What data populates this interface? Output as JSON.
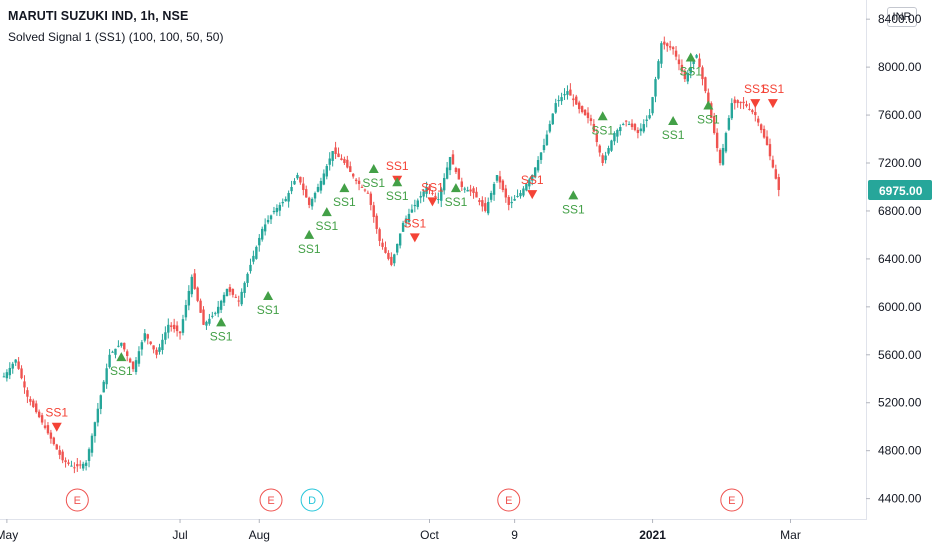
{
  "header": {
    "title": "MARUTI SUZUKI IND, 1h, NSE",
    "indicator": "Solved Signal 1 (SS1) (100, 100, 50, 50)",
    "currency": "INR"
  },
  "colors": {
    "up": "#26a69a",
    "down": "#ef5350",
    "buy_signal": "#43a047",
    "sell_signal": "#f44336",
    "earnings": "#ef5350",
    "dividend": "#26c6da",
    "price_label_bg": "#26a69a"
  },
  "chart_data": {
    "type": "candlestick",
    "symbol": "MARUTI SUZUKI IND",
    "interval": "1h",
    "exchange": "NSE",
    "y_ticks": [
      4400,
      4800,
      5200,
      5600,
      6000,
      6400,
      6800,
      7200,
      7600,
      8000,
      8400
    ],
    "y_tick_labels": [
      "4400.00",
      "4800.00",
      "5200.00",
      "5600.00",
      "6000.00",
      "6400.00",
      "6800.00",
      "7200.00",
      "7600.00",
      "8000.00",
      "8400.00"
    ],
    "ylim": [
      4230,
      8560
    ],
    "x_labels": [
      "May",
      "Jul",
      "Aug",
      "Oct",
      "9",
      "2021",
      "Mar"
    ],
    "x_label_slots": [
      0.5,
      30,
      43.5,
      72.5,
      87,
      110.5,
      134
    ],
    "bold_x_labels": [
      "2021"
    ],
    "last_price": "6975.00",
    "last_value": 6975,
    "slot_count": 138,
    "price_path": [
      [
        0,
        5420
      ],
      [
        2,
        5560
      ],
      [
        4,
        5250
      ],
      [
        6,
        5080
      ],
      [
        8,
        4900
      ],
      [
        10,
        4720
      ],
      [
        12,
        4660
      ],
      [
        14,
        4700
      ],
      [
        16,
        5150
      ],
      [
        18,
        5600
      ],
      [
        20,
        5700
      ],
      [
        22,
        5480
      ],
      [
        24,
        5780
      ],
      [
        26,
        5600
      ],
      [
        28,
        5850
      ],
      [
        30,
        5780
      ],
      [
        32,
        6250
      ],
      [
        34,
        5850
      ],
      [
        36,
        5950
      ],
      [
        38,
        6150
      ],
      [
        40,
        6050
      ],
      [
        42,
        6350
      ],
      [
        44,
        6650
      ],
      [
        46,
        6800
      ],
      [
        48,
        6900
      ],
      [
        50,
        7100
      ],
      [
        52,
        6850
      ],
      [
        54,
        7050
      ],
      [
        56,
        7300
      ],
      [
        58,
        7200
      ],
      [
        60,
        7050
      ],
      [
        62,
        6950
      ],
      [
        64,
        6550
      ],
      [
        66,
        6350
      ],
      [
        68,
        6700
      ],
      [
        70,
        6850
      ],
      [
        72,
        7000
      ],
      [
        74,
        6900
      ],
      [
        76,
        7250
      ],
      [
        78,
        7000
      ],
      [
        80,
        6950
      ],
      [
        82,
        6800
      ],
      [
        84,
        7100
      ],
      [
        86,
        6850
      ],
      [
        88,
        6950
      ],
      [
        90,
        7100
      ],
      [
        92,
        7350
      ],
      [
        94,
        7700
      ],
      [
        96,
        7800
      ],
      [
        98,
        7650
      ],
      [
        100,
        7550
      ],
      [
        102,
        7200
      ],
      [
        104,
        7450
      ],
      [
        106,
        7550
      ],
      [
        108,
        7450
      ],
      [
        110,
        7600
      ],
      [
        112,
        8200
      ],
      [
        114,
        8150
      ],
      [
        116,
        7900
      ],
      [
        118,
        8100
      ],
      [
        120,
        7700
      ],
      [
        122,
        7200
      ],
      [
        124,
        7700
      ],
      [
        126,
        7700
      ],
      [
        128,
        7600
      ],
      [
        130,
        7350
      ],
      [
        132,
        6975
      ]
    ],
    "signals": [
      {
        "slot": 9,
        "type": "sell",
        "price": 5000,
        "label": "SS1"
      },
      {
        "slot": 20,
        "type": "buy",
        "price": 5580,
        "label": "SS1"
      },
      {
        "slot": 37,
        "type": "buy",
        "price": 5870,
        "label": "SS1"
      },
      {
        "slot": 45,
        "type": "buy",
        "price": 6090,
        "label": "SS1"
      },
      {
        "slot": 52,
        "type": "buy",
        "price": 6600,
        "label": "SS1"
      },
      {
        "slot": 55,
        "type": "buy",
        "price": 6790,
        "label": "SS1"
      },
      {
        "slot": 58,
        "type": "buy",
        "price": 6990,
        "label": "SS1"
      },
      {
        "slot": 63,
        "type": "buy",
        "price": 7150,
        "label": "SS1"
      },
      {
        "slot": 67,
        "type": "sell",
        "price": 7060,
        "label": "SS1"
      },
      {
        "slot": 67,
        "type": "buy",
        "price": 7040,
        "label": "SS1"
      },
      {
        "slot": 70,
        "type": "sell",
        "price": 6580,
        "label": "SS1"
      },
      {
        "slot": 73,
        "type": "sell",
        "price": 6880,
        "label": "SS1"
      },
      {
        "slot": 77,
        "type": "buy",
        "price": 6990,
        "label": "SS1"
      },
      {
        "slot": 90,
        "type": "sell",
        "price": 6940,
        "label": "SS1"
      },
      {
        "slot": 97,
        "type": "buy",
        "price": 6930,
        "label": "SS1"
      },
      {
        "slot": 102,
        "type": "buy",
        "price": 7590,
        "label": "SS1"
      },
      {
        "slot": 114,
        "type": "buy",
        "price": 7550,
        "label": "SS1"
      },
      {
        "slot": 117,
        "type": "buy",
        "price": 8080,
        "label": "SS1"
      },
      {
        "slot": 120,
        "type": "buy",
        "price": 7680,
        "label": "SS1"
      },
      {
        "slot": 128,
        "type": "sell",
        "price": 7700,
        "label": "SS1"
      },
      {
        "slot": 131,
        "type": "sell",
        "price": 7700,
        "label": "SS1"
      }
    ],
    "events": [
      {
        "slot": 12.5,
        "type": "earnings",
        "label": "E"
      },
      {
        "slot": 45.5,
        "type": "earnings",
        "label": "E"
      },
      {
        "slot": 52.5,
        "type": "dividend",
        "label": "D"
      },
      {
        "slot": 86,
        "type": "earnings",
        "label": "E"
      },
      {
        "slot": 124,
        "type": "earnings",
        "label": "E"
      }
    ]
  }
}
